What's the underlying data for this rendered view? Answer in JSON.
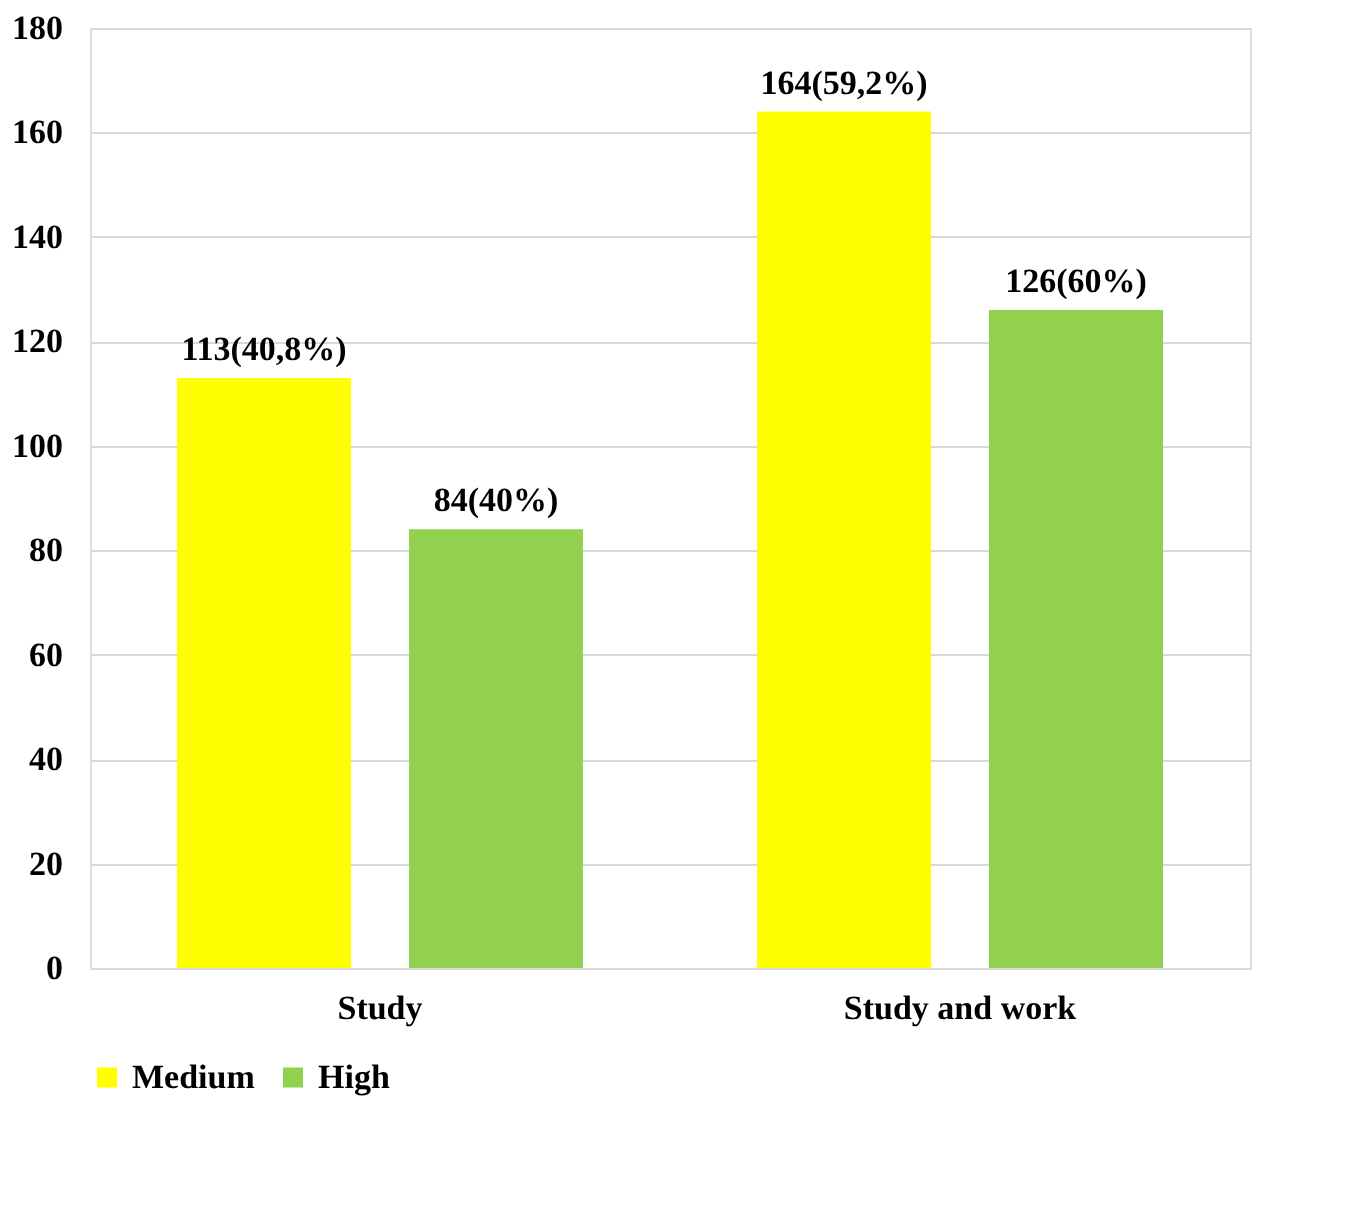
{
  "chart_data": {
    "type": "bar",
    "categories": [
      "Study",
      "Study and work"
    ],
    "series": [
      {
        "name": "Medium",
        "color": "#ffff00",
        "values": [
          113,
          164
        ],
        "value_labels": [
          "113(40,8%)",
          "164(59,2%)"
        ]
      },
      {
        "name": "High",
        "color": "#92d050",
        "values": [
          84,
          126
        ],
        "value_labels": [
          "84(40%)",
          "126(60%)"
        ]
      }
    ],
    "ylim": [
      0,
      180
    ],
    "yticks": [
      0,
      20,
      40,
      60,
      80,
      100,
      120,
      140,
      160,
      180
    ],
    "grid": "y",
    "legend": "bottom"
  }
}
